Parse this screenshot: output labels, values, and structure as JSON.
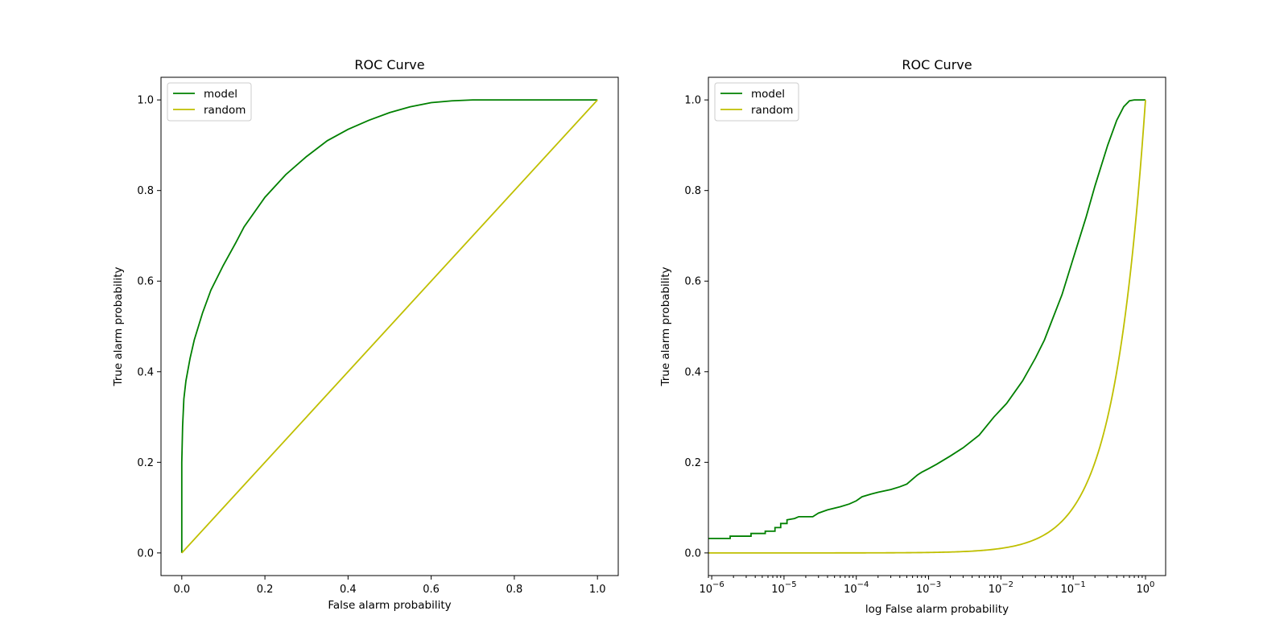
{
  "chart_data": [
    {
      "type": "line",
      "title": "ROC Curve",
      "xlabel": "False alarm probability",
      "ylabel": "True alarm probability",
      "xscale": "linear",
      "xlim": [
        -0.05,
        1.05
      ],
      "ylim": [
        -0.05,
        1.05
      ],
      "xticks": [
        {
          "value": 0.0,
          "label": "0.0"
        },
        {
          "value": 0.2,
          "label": "0.2"
        },
        {
          "value": 0.4,
          "label": "0.4"
        },
        {
          "value": 0.6,
          "label": "0.6"
        },
        {
          "value": 0.8,
          "label": "0.8"
        },
        {
          "value": 1.0,
          "label": "1.0"
        }
      ],
      "yticks": [
        {
          "value": 0.0,
          "label": "0.0"
        },
        {
          "value": 0.2,
          "label": "0.2"
        },
        {
          "value": 0.4,
          "label": "0.4"
        },
        {
          "value": 0.6,
          "label": "0.6"
        },
        {
          "value": 0.8,
          "label": "0.8"
        },
        {
          "value": 1.0,
          "label": "1.0"
        }
      ],
      "grid": false,
      "legend": "upper-left",
      "series": [
        {
          "name": "model",
          "color": "#008000",
          "points": [
            [
              0.0,
              0.0
            ],
            [
              0.0,
              0.2
            ],
            [
              0.002,
              0.28
            ],
            [
              0.005,
              0.34
            ],
            [
              0.01,
              0.38
            ],
            [
              0.02,
              0.43
            ],
            [
              0.03,
              0.47
            ],
            [
              0.05,
              0.53
            ],
            [
              0.07,
              0.58
            ],
            [
              0.1,
              0.635
            ],
            [
              0.13,
              0.685
            ],
            [
              0.15,
              0.72
            ],
            [
              0.2,
              0.785
            ],
            [
              0.25,
              0.835
            ],
            [
              0.3,
              0.875
            ],
            [
              0.35,
              0.91
            ],
            [
              0.4,
              0.935
            ],
            [
              0.45,
              0.955
            ],
            [
              0.5,
              0.972
            ],
            [
              0.55,
              0.985
            ],
            [
              0.6,
              0.994
            ],
            [
              0.65,
              0.998
            ],
            [
              0.7,
              1.0
            ],
            [
              0.8,
              1.0
            ],
            [
              0.9,
              1.0
            ],
            [
              1.0,
              1.0
            ]
          ]
        },
        {
          "name": "random",
          "color": "#bfbf00",
          "points": [
            [
              0.0,
              0.0
            ],
            [
              1.0,
              1.0
            ]
          ]
        }
      ]
    },
    {
      "type": "line",
      "title": "ROC Curve",
      "xlabel": "log False alarm probability",
      "ylabel": "True alarm probability",
      "xscale": "log",
      "xlim": [
        9e-07,
        1.9
      ],
      "ylim": [
        -0.05,
        1.05
      ],
      "xticks": [
        {
          "value": 1e-06,
          "base": "10",
          "exp": "−6"
        },
        {
          "value": 1e-05,
          "base": "10",
          "exp": "−5"
        },
        {
          "value": 0.0001,
          "base": "10",
          "exp": "−4"
        },
        {
          "value": 0.001,
          "base": "10",
          "exp": "−3"
        },
        {
          "value": 0.01,
          "base": "10",
          "exp": "−2"
        },
        {
          "value": 0.1,
          "base": "10",
          "exp": "−1"
        },
        {
          "value": 1,
          "base": "10",
          "exp": "0"
        }
      ],
      "yticks": [
        {
          "value": 0.0,
          "label": "0.0"
        },
        {
          "value": 0.2,
          "label": "0.2"
        },
        {
          "value": 0.4,
          "label": "0.4"
        },
        {
          "value": 0.6,
          "label": "0.6"
        },
        {
          "value": 0.8,
          "label": "0.8"
        },
        {
          "value": 1.0,
          "label": "1.0"
        }
      ],
      "grid": false,
      "legend": "upper-left",
      "series": [
        {
          "name": "model",
          "color": "#008000",
          "points": [
            [
              9e-07,
              0.032
            ],
            [
              1.8e-06,
              0.032
            ],
            [
              1.8e-06,
              0.037
            ],
            [
              3.5e-06,
              0.037
            ],
            [
              3.5e-06,
              0.043
            ],
            [
              5.5e-06,
              0.043
            ],
            [
              5.5e-06,
              0.048
            ],
            [
              7.5e-06,
              0.048
            ],
            [
              7.5e-06,
              0.056
            ],
            [
              9e-06,
              0.056
            ],
            [
              9e-06,
              0.065
            ],
            [
              1.1e-05,
              0.065
            ],
            [
              1.1e-05,
              0.073
            ],
            [
              1.4e-05,
              0.076
            ],
            [
              1.6e-05,
              0.08
            ],
            [
              2.5e-05,
              0.08
            ],
            [
              3e-05,
              0.088
            ],
            [
              4e-05,
              0.095
            ],
            [
              6e-05,
              0.102
            ],
            [
              8e-05,
              0.108
            ],
            [
              0.0001,
              0.115
            ],
            [
              0.00012,
              0.124
            ],
            [
              0.00016,
              0.13
            ],
            [
              0.0002,
              0.134
            ],
            [
              0.0003,
              0.14
            ],
            [
              0.0004,
              0.146
            ],
            [
              0.0005,
              0.152
            ],
            [
              0.0006,
              0.163
            ],
            [
              0.0007,
              0.172
            ],
            [
              0.0008,
              0.178
            ],
            [
              0.001,
              0.186
            ],
            [
              0.0013,
              0.196
            ],
            [
              0.002,
              0.214
            ],
            [
              0.003,
              0.232
            ],
            [
              0.005,
              0.26
            ],
            [
              0.008,
              0.3
            ],
            [
              0.012,
              0.33
            ],
            [
              0.02,
              0.38
            ],
            [
              0.03,
              0.43
            ],
            [
              0.04,
              0.47
            ],
            [
              0.05,
              0.51
            ],
            [
              0.07,
              0.57
            ],
            [
              0.1,
              0.65
            ],
            [
              0.15,
              0.74
            ],
            [
              0.2,
              0.81
            ],
            [
              0.3,
              0.9
            ],
            [
              0.4,
              0.955
            ],
            [
              0.5,
              0.985
            ],
            [
              0.6,
              0.998
            ],
            [
              0.7,
              1.0
            ],
            [
              1.0,
              1.0
            ]
          ]
        },
        {
          "name": "random",
          "color": "#bfbf00",
          "points": []
        }
      ]
    }
  ]
}
